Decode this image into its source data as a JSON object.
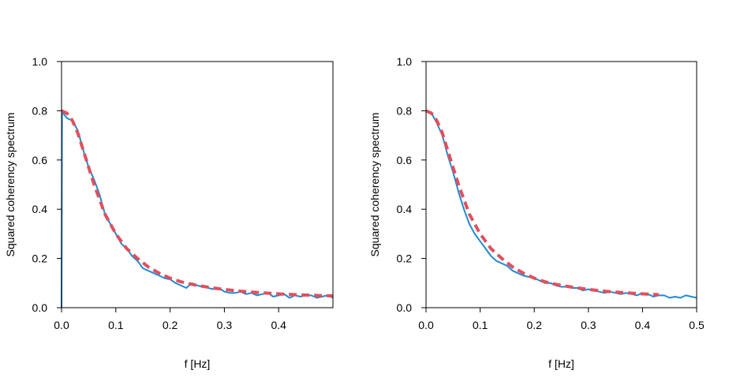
{
  "chart_data": [
    {
      "type": "line",
      "xlabel": "f [Hz]",
      "ylabel": "Squared coherency spectrum",
      "xlim": [
        0,
        0.5
      ],
      "ylim": [
        0,
        1.0
      ],
      "x_ticks": [
        "0.0",
        "0.1",
        "0.2",
        "0.3",
        "0.4"
      ],
      "y_ticks": [
        "0.0",
        "0.2",
        "0.4",
        "0.6",
        "0.8",
        "1.0"
      ],
      "grid": false,
      "series": [
        {
          "style": "solid",
          "color": "#1f8bd1",
          "x": [
            0.0,
            0.001,
            0.003,
            0.01,
            0.02,
            0.03,
            0.04,
            0.05,
            0.06,
            0.07,
            0.08,
            0.09,
            0.1,
            0.11,
            0.12,
            0.13,
            0.14,
            0.15,
            0.16,
            0.17,
            0.18,
            0.19,
            0.2,
            0.21,
            0.22,
            0.23,
            0.24,
            0.25,
            0.26,
            0.27,
            0.28,
            0.29,
            0.3,
            0.31,
            0.32,
            0.33,
            0.34,
            0.35,
            0.36,
            0.37,
            0.38,
            0.39,
            0.4,
            0.41,
            0.42,
            0.43,
            0.44,
            0.45,
            0.46,
            0.47,
            0.48,
            0.49,
            0.5
          ],
          "y": [
            0.0,
            0.8,
            0.79,
            0.77,
            0.76,
            0.72,
            0.64,
            0.57,
            0.52,
            0.46,
            0.38,
            0.34,
            0.3,
            0.26,
            0.24,
            0.21,
            0.19,
            0.16,
            0.15,
            0.14,
            0.13,
            0.12,
            0.115,
            0.1,
            0.09,
            0.08,
            0.1,
            0.09,
            0.085,
            0.08,
            0.075,
            0.08,
            0.065,
            0.06,
            0.06,
            0.065,
            0.055,
            0.06,
            0.05,
            0.055,
            0.06,
            0.045,
            0.05,
            0.055,
            0.04,
            0.05,
            0.045,
            0.05,
            0.05,
            0.04,
            0.045,
            0.05,
            0.04
          ]
        },
        {
          "style": "dashed",
          "color": "#e0505e",
          "x": [
            0.0,
            0.01,
            0.02,
            0.03,
            0.04,
            0.05,
            0.06,
            0.07,
            0.08,
            0.09,
            0.1,
            0.12,
            0.14,
            0.16,
            0.18,
            0.2,
            0.22,
            0.24,
            0.26,
            0.28,
            0.3,
            0.33,
            0.36,
            0.4,
            0.44,
            0.48,
            0.5
          ],
          "y": [
            0.8,
            0.79,
            0.76,
            0.71,
            0.64,
            0.57,
            0.5,
            0.44,
            0.38,
            0.34,
            0.3,
            0.24,
            0.2,
            0.165,
            0.14,
            0.12,
            0.105,
            0.095,
            0.087,
            0.08,
            0.074,
            0.067,
            0.062,
            0.056,
            0.052,
            0.049,
            0.048
          ]
        }
      ]
    },
    {
      "type": "line",
      "xlabel": "f [Hz]",
      "ylabel": "Squared coherency spectrum",
      "xlim": [
        0,
        0.5
      ],
      "ylim": [
        0,
        1.0
      ],
      "x_ticks": [
        "0.0",
        "0.1",
        "0.2",
        "0.3",
        "0.4",
        "0.5"
      ],
      "y_ticks": [
        "0.0",
        "0.2",
        "0.4",
        "0.6",
        "0.8",
        "1.0"
      ],
      "grid": false,
      "series": [
        {
          "style": "solid",
          "color": "#1f8bd1",
          "x": [
            0.0,
            0.01,
            0.02,
            0.03,
            0.04,
            0.05,
            0.06,
            0.07,
            0.08,
            0.09,
            0.1,
            0.11,
            0.12,
            0.13,
            0.14,
            0.15,
            0.16,
            0.17,
            0.18,
            0.19,
            0.2,
            0.21,
            0.22,
            0.23,
            0.24,
            0.25,
            0.26,
            0.27,
            0.28,
            0.29,
            0.3,
            0.31,
            0.32,
            0.33,
            0.34,
            0.35,
            0.36,
            0.37,
            0.38,
            0.39,
            0.4,
            0.41,
            0.42,
            0.43,
            0.44,
            0.45,
            0.46,
            0.47,
            0.48,
            0.49,
            0.5
          ],
          "y": [
            0.8,
            0.79,
            0.75,
            0.7,
            0.62,
            0.55,
            0.47,
            0.4,
            0.34,
            0.3,
            0.27,
            0.24,
            0.21,
            0.19,
            0.18,
            0.17,
            0.15,
            0.14,
            0.13,
            0.125,
            0.12,
            0.11,
            0.1,
            0.1,
            0.09,
            0.085,
            0.085,
            0.08,
            0.08,
            0.07,
            0.075,
            0.07,
            0.065,
            0.06,
            0.065,
            0.06,
            0.055,
            0.06,
            0.055,
            0.05,
            0.06,
            0.055,
            0.045,
            0.05,
            0.05,
            0.04,
            0.045,
            0.04,
            0.05,
            0.045,
            0.04
          ]
        },
        {
          "style": "dashed",
          "color": "#e0505e",
          "x": [
            0.0,
            0.01,
            0.02,
            0.03,
            0.04,
            0.05,
            0.06,
            0.07,
            0.08,
            0.09,
            0.1,
            0.12,
            0.14,
            0.16,
            0.18,
            0.2,
            0.22,
            0.24,
            0.26,
            0.28,
            0.3,
            0.33,
            0.36,
            0.4,
            0.43
          ],
          "y": [
            0.8,
            0.79,
            0.76,
            0.71,
            0.64,
            0.57,
            0.5,
            0.44,
            0.38,
            0.34,
            0.3,
            0.24,
            0.2,
            0.165,
            0.14,
            0.12,
            0.105,
            0.095,
            0.087,
            0.08,
            0.074,
            0.067,
            0.062,
            0.056,
            0.053
          ]
        }
      ]
    }
  ]
}
